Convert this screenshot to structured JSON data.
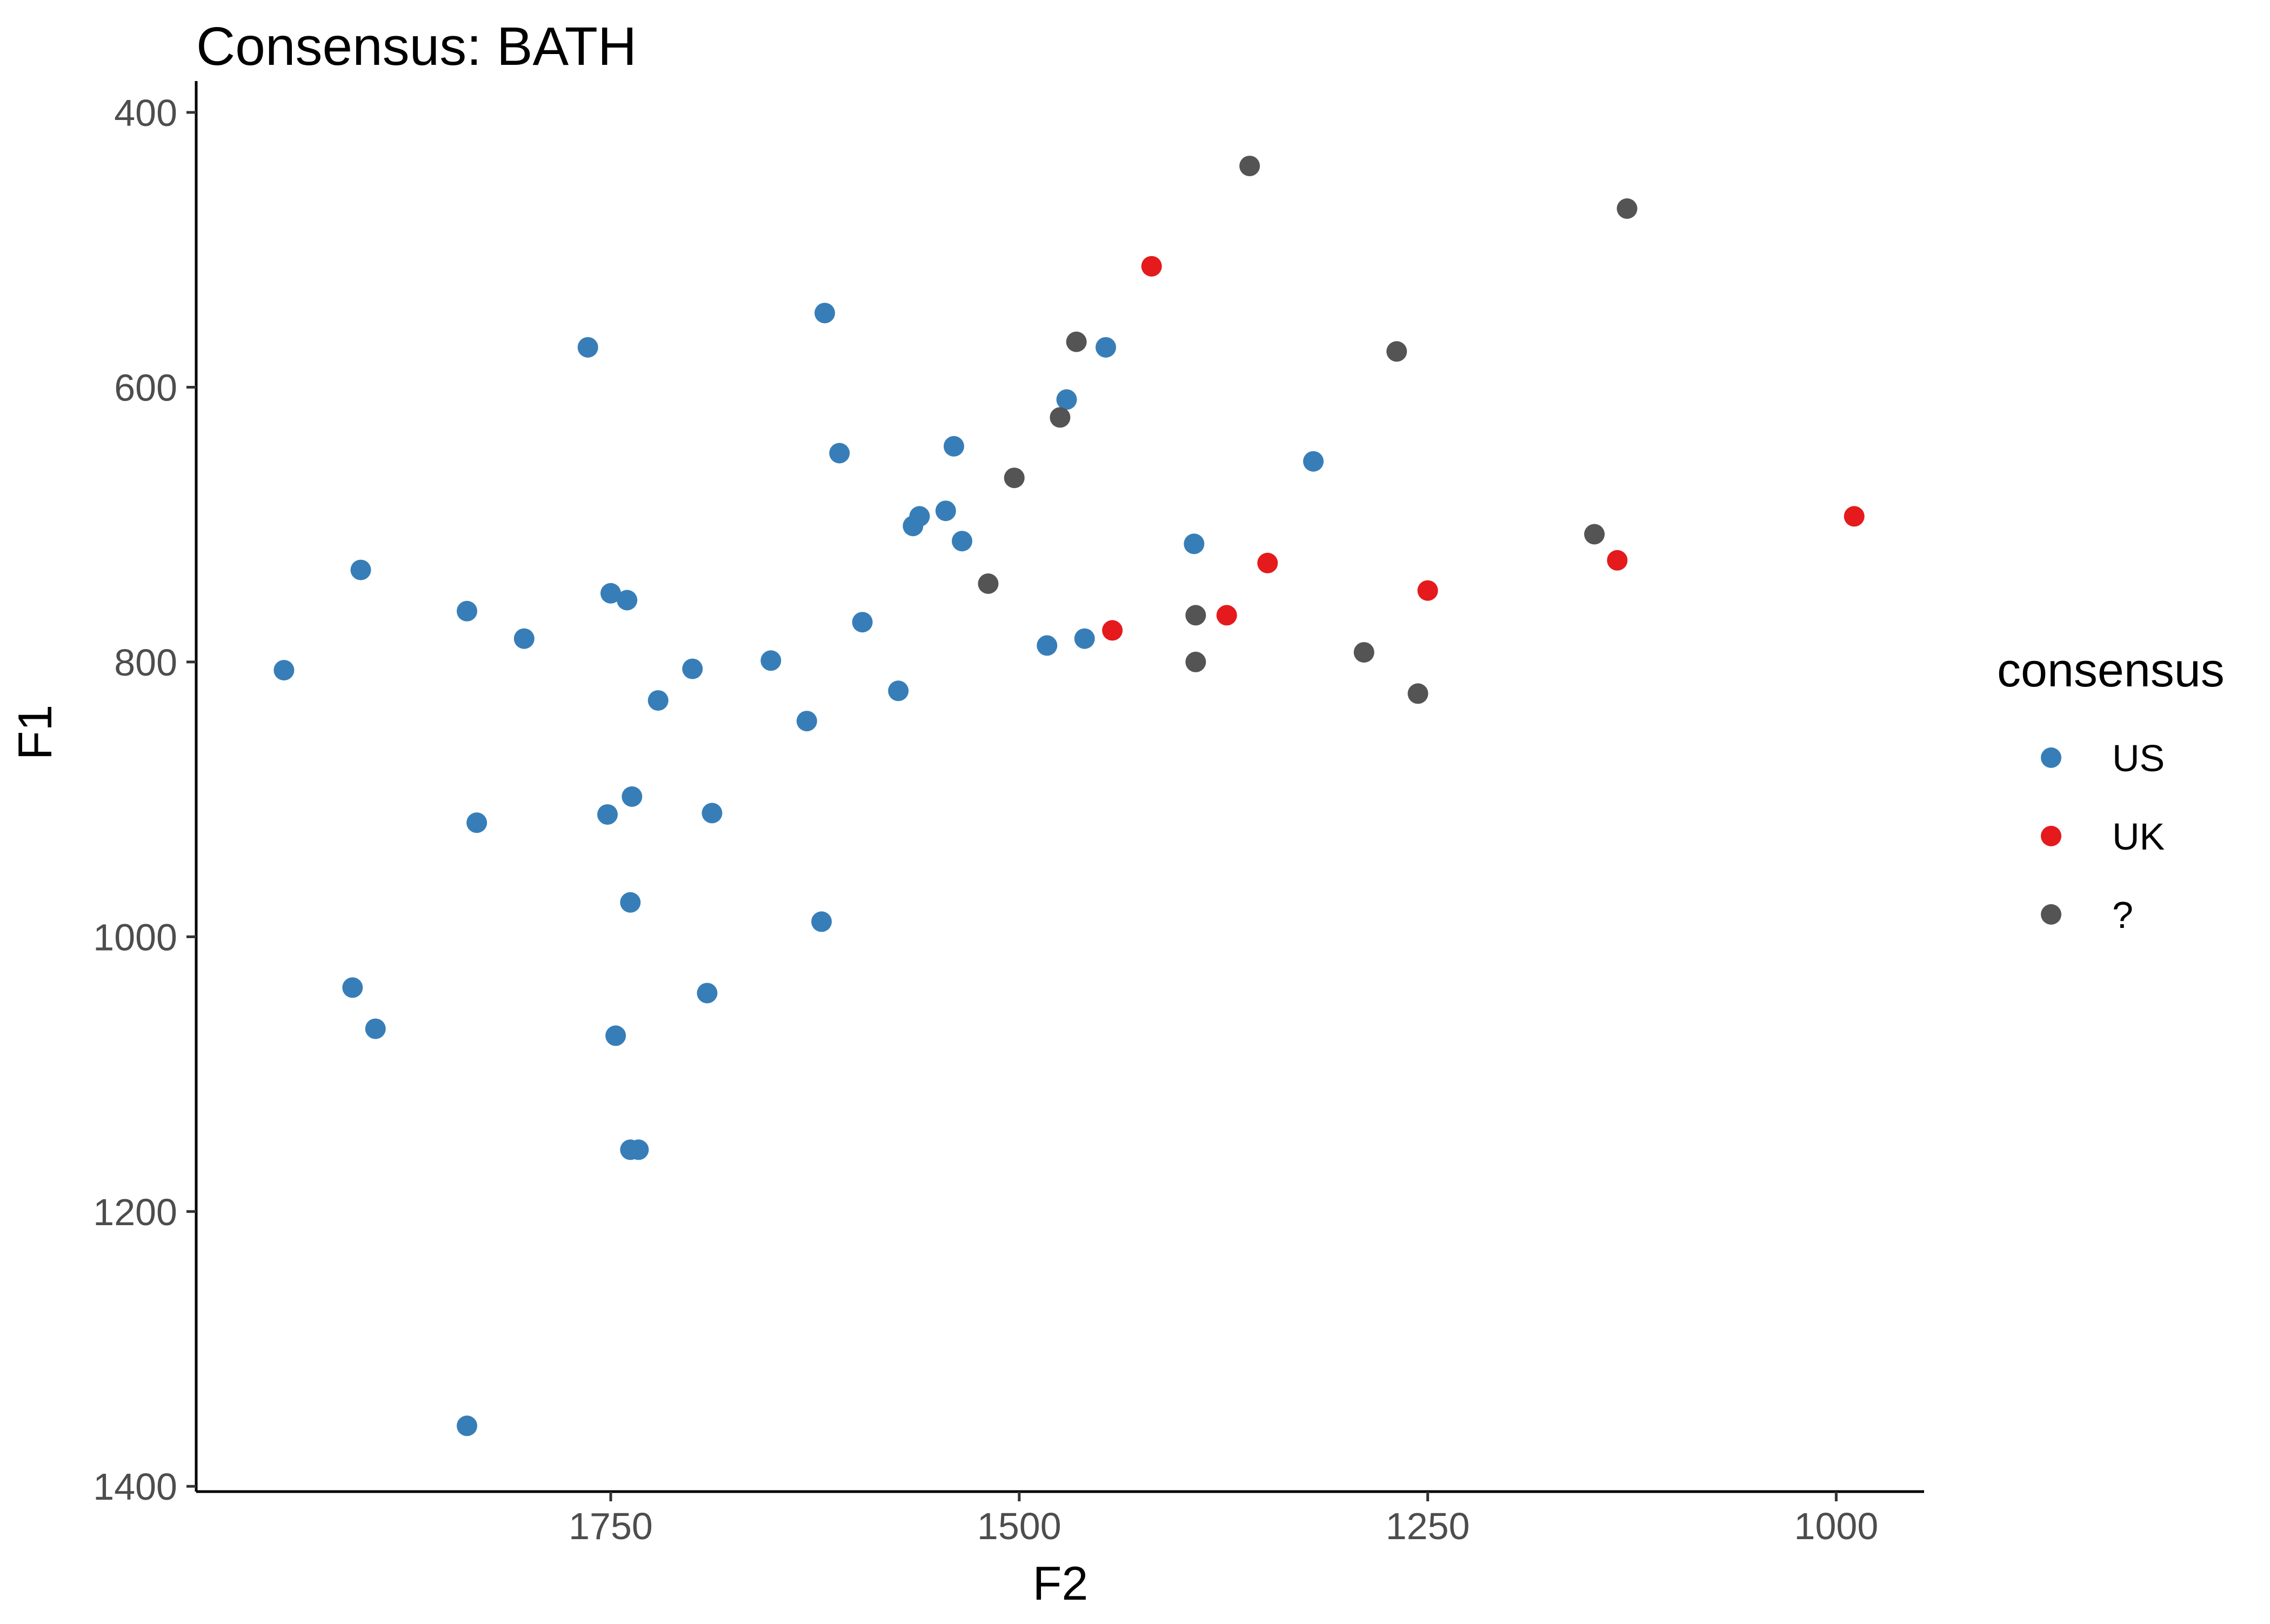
{
  "chart_data": {
    "type": "scatter",
    "title": "Consensus: BATH",
    "xlabel": "F2",
    "ylabel": "F1",
    "x_reversed": true,
    "y_reversed": true,
    "xlim": [
      1940,
      900
    ],
    "ylim": [
      400,
      1400
    ],
    "x_ticks": [
      1750,
      1500,
      1250,
      1000
    ],
    "y_ticks": [
      400,
      600,
      800,
      1000,
      1200,
      1400
    ],
    "grid": false,
    "legend": {
      "title": "consensus",
      "position": "right"
    },
    "series": [
      {
        "name": "US",
        "color": "#377eb8",
        "points": [
          {
            "x": 1950,
            "y": 806
          },
          {
            "x": 1903,
            "y": 733
          },
          {
            "x": 1908,
            "y": 1037
          },
          {
            "x": 1894,
            "y": 1067
          },
          {
            "x": 1838,
            "y": 763
          },
          {
            "x": 1832,
            "y": 917
          },
          {
            "x": 1838,
            "y": 1356
          },
          {
            "x": 1803,
            "y": 783
          },
          {
            "x": 1764,
            "y": 571
          },
          {
            "x": 1750,
            "y": 750
          },
          {
            "x": 1752,
            "y": 911
          },
          {
            "x": 1747,
            "y": 1072
          },
          {
            "x": 1740,
            "y": 755
          },
          {
            "x": 1737,
            "y": 898
          },
          {
            "x": 1738,
            "y": 975
          },
          {
            "x": 1738,
            "y": 1155
          },
          {
            "x": 1733,
            "y": 1155
          },
          {
            "x": 1721,
            "y": 828
          },
          {
            "x": 1700,
            "y": 805
          },
          {
            "x": 1688,
            "y": 910
          },
          {
            "x": 1691,
            "y": 1041
          },
          {
            "x": 1652,
            "y": 799
          },
          {
            "x": 1630,
            "y": 843
          },
          {
            "x": 1619,
            "y": 546
          },
          {
            "x": 1621,
            "y": 989
          },
          {
            "x": 1610,
            "y": 648
          },
          {
            "x": 1596,
            "y": 771
          },
          {
            "x": 1574,
            "y": 821
          },
          {
            "x": 1561,
            "y": 694
          },
          {
            "x": 1565,
            "y": 701
          },
          {
            "x": 1545,
            "y": 690
          },
          {
            "x": 1540,
            "y": 643
          },
          {
            "x": 1535,
            "y": 712
          },
          {
            "x": 1483,
            "y": 788
          },
          {
            "x": 1471,
            "y": 609
          },
          {
            "x": 1460,
            "y": 783
          },
          {
            "x": 1447,
            "y": 571
          },
          {
            "x": 1393,
            "y": 714
          },
          {
            "x": 1320,
            "y": 654
          }
        ]
      },
      {
        "name": "UK",
        "color": "#e41a1c",
        "points": [
          {
            "x": 1419,
            "y": 512
          },
          {
            "x": 1443,
            "y": 777
          },
          {
            "x": 1373,
            "y": 766
          },
          {
            "x": 1348,
            "y": 728
          },
          {
            "x": 1250,
            "y": 748
          },
          {
            "x": 1134,
            "y": 726
          },
          {
            "x": 989,
            "y": 694
          }
        ]
      },
      {
        "name": "?",
        "color": "#545454",
        "points": [
          {
            "x": 1359,
            "y": 439
          },
          {
            "x": 1128,
            "y": 470
          },
          {
            "x": 1465,
            "y": 567
          },
          {
            "x": 1269,
            "y": 574
          },
          {
            "x": 1475,
            "y": 622
          },
          {
            "x": 1503,
            "y": 666
          },
          {
            "x": 1519,
            "y": 743
          },
          {
            "x": 1392,
            "y": 766
          },
          {
            "x": 1392,
            "y": 800
          },
          {
            "x": 1148,
            "y": 707
          },
          {
            "x": 1289,
            "y": 793
          },
          {
            "x": 1256,
            "y": 823
          }
        ]
      }
    ]
  }
}
